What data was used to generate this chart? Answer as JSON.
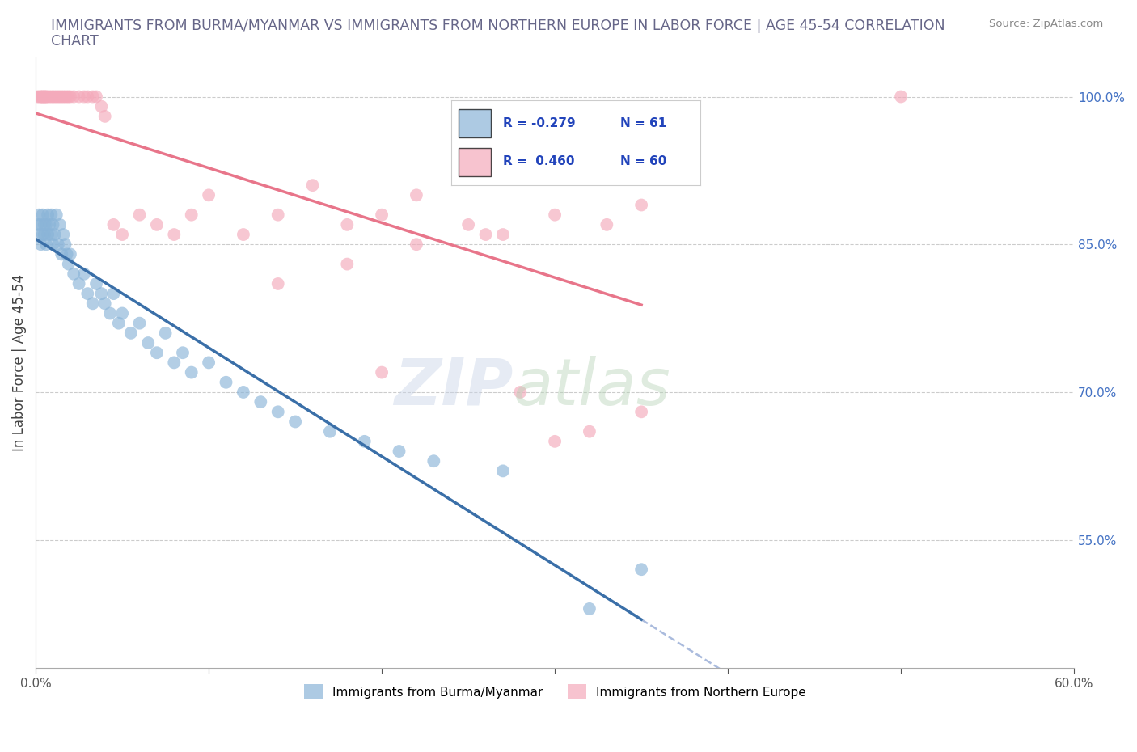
{
  "title_line1": "IMMIGRANTS FROM BURMA/MYANMAR VS IMMIGRANTS FROM NORTHERN EUROPE IN LABOR FORCE | AGE 45-54 CORRELATION",
  "title_line2": "CHART",
  "source": "Source: ZipAtlas.com",
  "ylabel": "In Labor Force | Age 45-54",
  "xlim": [
    0.0,
    0.6
  ],
  "ylim": [
    0.42,
    1.04
  ],
  "xticks": [
    0.0,
    0.1,
    0.2,
    0.3,
    0.4,
    0.5,
    0.6
  ],
  "xticklabels": [
    "0.0%",
    "",
    "",
    "",
    "",
    "",
    "60.0%"
  ],
  "yticks": [
    0.55,
    0.7,
    0.85,
    1.0
  ],
  "yticklabels": [
    "55.0%",
    "70.0%",
    "85.0%",
    "100.0%"
  ],
  "R_burma": -0.279,
  "N_burma": 61,
  "R_north": 0.46,
  "N_north": 60,
  "color_burma": "#8ab4d8",
  "color_north": "#f4aabb",
  "line_color_burma": "#3a6fa8",
  "line_color_north": "#e8758a",
  "dash_color": "#aabbdd",
  "legend_label_burma": "Immigrants from Burma/Myanmar",
  "legend_label_north": "Immigrants from Northern Europe",
  "grid_color": "#cccccc",
  "burma_x": [
    0.001,
    0.002,
    0.002,
    0.003,
    0.003,
    0.004,
    0.004,
    0.005,
    0.005,
    0.006,
    0.006,
    0.007,
    0.007,
    0.008,
    0.009,
    0.009,
    0.01,
    0.01,
    0.011,
    0.012,
    0.013,
    0.014,
    0.015,
    0.016,
    0.017,
    0.018,
    0.019,
    0.02,
    0.022,
    0.025,
    0.028,
    0.03,
    0.033,
    0.035,
    0.038,
    0.04,
    0.043,
    0.045,
    0.048,
    0.05,
    0.055,
    0.06,
    0.065,
    0.07,
    0.075,
    0.08,
    0.085,
    0.09,
    0.1,
    0.11,
    0.12,
    0.13,
    0.14,
    0.15,
    0.17,
    0.19,
    0.21,
    0.23,
    0.27,
    0.32,
    0.35
  ],
  "burma_y": [
    0.87,
    0.88,
    0.86,
    0.87,
    0.85,
    0.88,
    0.86,
    0.87,
    0.86,
    0.87,
    0.85,
    0.88,
    0.86,
    0.87,
    0.88,
    0.86,
    0.87,
    0.85,
    0.86,
    0.88,
    0.85,
    0.87,
    0.84,
    0.86,
    0.85,
    0.84,
    0.83,
    0.84,
    0.82,
    0.81,
    0.82,
    0.8,
    0.79,
    0.81,
    0.8,
    0.79,
    0.78,
    0.8,
    0.77,
    0.78,
    0.76,
    0.77,
    0.75,
    0.74,
    0.76,
    0.73,
    0.74,
    0.72,
    0.73,
    0.71,
    0.7,
    0.69,
    0.68,
    0.67,
    0.66,
    0.65,
    0.64,
    0.63,
    0.62,
    0.48,
    0.52
  ],
  "north_x": [
    0.001,
    0.002,
    0.003,
    0.003,
    0.004,
    0.004,
    0.005,
    0.005,
    0.006,
    0.006,
    0.007,
    0.008,
    0.009,
    0.01,
    0.011,
    0.012,
    0.013,
    0.014,
    0.015,
    0.016,
    0.017,
    0.018,
    0.019,
    0.02,
    0.022,
    0.025,
    0.028,
    0.03,
    0.033,
    0.035,
    0.038,
    0.04,
    0.045,
    0.05,
    0.06,
    0.07,
    0.08,
    0.09,
    0.1,
    0.12,
    0.14,
    0.16,
    0.18,
    0.2,
    0.22,
    0.25,
    0.27,
    0.3,
    0.33,
    0.35,
    0.14,
    0.18,
    0.22,
    0.26,
    0.3,
    0.35,
    0.2,
    0.28,
    0.32,
    0.5
  ],
  "north_y": [
    1.0,
    1.0,
    1.0,
    1.0,
    1.0,
    1.0,
    1.0,
    1.0,
    1.0,
    1.0,
    1.0,
    1.0,
    1.0,
    1.0,
    1.0,
    1.0,
    1.0,
    1.0,
    1.0,
    1.0,
    1.0,
    1.0,
    1.0,
    1.0,
    1.0,
    1.0,
    1.0,
    1.0,
    1.0,
    1.0,
    0.99,
    0.98,
    0.87,
    0.86,
    0.88,
    0.87,
    0.86,
    0.88,
    0.9,
    0.86,
    0.88,
    0.91,
    0.87,
    0.88,
    0.9,
    0.87,
    0.86,
    0.88,
    0.87,
    0.89,
    0.81,
    0.83,
    0.85,
    0.86,
    0.65,
    0.68,
    0.72,
    0.7,
    0.66,
    1.0
  ]
}
